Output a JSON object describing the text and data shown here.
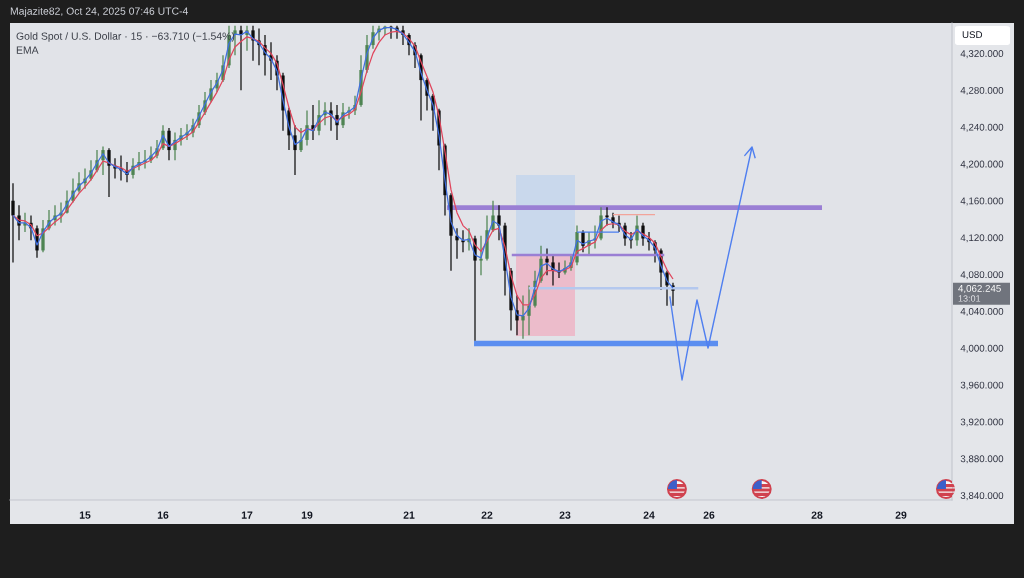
{
  "chart_data": {
    "type": "candlestick",
    "title": "Gold Spot / U.S. Dollar · 15 · −63.710 (−1.54%)",
    "categories": [
      null,
      null,
      null,
      null,
      null,
      null,
      null,
      null,
      null,
      null,
      null,
      null,
      "15",
      null,
      null,
      null,
      null,
      null,
      null,
      null,
      null,
      null,
      null,
      null,
      null,
      "16",
      null,
      null,
      null,
      null,
      null,
      null,
      null,
      null,
      null,
      null,
      null,
      null,
      null,
      "17",
      null,
      null,
      null,
      null,
      null,
      null,
      null,
      null,
      null,
      "19",
      null,
      null,
      null,
      null,
      null,
      null,
      null,
      null,
      null,
      null,
      null,
      null,
      null,
      null,
      null,
      null,
      "21",
      null,
      null,
      null,
      null,
      null,
      null,
      null,
      null,
      null,
      null,
      null,
      null,
      "22",
      null,
      null,
      null,
      null,
      null,
      null,
      null,
      null,
      null,
      null,
      null,
      null,
      "23",
      null,
      null,
      null,
      null,
      null,
      null,
      null,
      null,
      null,
      null,
      null,
      null,
      null,
      "24",
      null,
      null,
      null,
      null,
      null,
      null,
      null,
      null,
      null,
      "26",
      null,
      null,
      null,
      null,
      null,
      null,
      null,
      null,
      null,
      null,
      null,
      null,
      null,
      null,
      null,
      null,
      null,
      "28",
      null,
      null,
      null,
      null,
      null,
      null,
      null,
      null,
      null,
      null,
      null,
      null,
      null,
      "29",
      null,
      null,
      null,
      null,
      null,
      null,
      null,
      null
    ],
    "ohlc": [
      [
        4160,
        4179,
        4093,
        4144
      ],
      [
        4144,
        4155,
        4117,
        4133
      ],
      [
        4133,
        4147,
        4126,
        4136
      ],
      [
        4136,
        4144,
        4117,
        4130
      ],
      [
        4130,
        4133,
        4098,
        4106
      ],
      [
        4106,
        4139,
        4104,
        4130
      ],
      [
        4130,
        4150,
        4128,
        4139
      ],
      [
        4139,
        4155,
        4133,
        4144
      ],
      [
        4144,
        4158,
        4136,
        4147
      ],
      [
        4147,
        4171,
        4146,
        4160
      ],
      [
        4160,
        4184,
        4158,
        4171
      ],
      [
        4171,
        4191,
        4169,
        4179
      ],
      [
        4179,
        4195,
        4173,
        4184
      ],
      [
        4184,
        4204,
        4182,
        4193
      ],
      [
        4193,
        4215,
        4191,
        4204
      ],
      [
        4204,
        4219,
        4188,
        4215
      ],
      [
        4215,
        4217,
        4164,
        4198
      ],
      [
        4198,
        4206,
        4184,
        4195
      ],
      [
        4195,
        4209,
        4182,
        4193
      ],
      [
        4193,
        4202,
        4180,
        4188
      ],
      [
        4188,
        4206,
        4184,
        4198
      ],
      [
        4198,
        4213,
        4193,
        4202
      ],
      [
        4202,
        4215,
        4195,
        4204
      ],
      [
        4204,
        4219,
        4201,
        4209
      ],
      [
        4209,
        4226,
        4206,
        4217
      ],
      [
        4217,
        4242,
        4215,
        4236
      ],
      [
        4236,
        4239,
        4204,
        4215
      ],
      [
        4215,
        4234,
        4204,
        4226
      ],
      [
        4226,
        4239,
        4220,
        4231
      ],
      [
        4231,
        4243,
        4226,
        4234
      ],
      [
        4234,
        4249,
        4229,
        4242
      ],
      [
        4242,
        4264,
        4239,
        4256
      ],
      [
        4256,
        4278,
        4253,
        4269
      ],
      [
        4269,
        4291,
        4267,
        4282
      ],
      [
        4282,
        4299,
        4278,
        4291
      ],
      [
        4291,
        4318,
        4289,
        4307
      ],
      [
        4307,
        4350,
        4304,
        4340
      ],
      [
        4340,
        4350,
        4318,
        4345
      ],
      [
        4345,
        4350,
        4280,
        4340
      ],
      [
        4340,
        4350,
        4323,
        4345
      ],
      [
        4345,
        4350,
        4312,
        4334
      ],
      [
        4334,
        4347,
        4307,
        4329
      ],
      [
        4329,
        4340,
        4296,
        4318
      ],
      [
        4318,
        4332,
        4291,
        4312
      ],
      [
        4312,
        4318,
        4280,
        4296
      ],
      [
        4296,
        4299,
        4236,
        4258
      ],
      [
        4258,
        4261,
        4215,
        4231
      ],
      [
        4231,
        4242,
        4188,
        4215
      ],
      [
        4215,
        4239,
        4213,
        4226
      ],
      [
        4226,
        4258,
        4220,
        4242
      ],
      [
        4242,
        4264,
        4226,
        4236
      ],
      [
        4236,
        4269,
        4231,
        4253
      ],
      [
        4253,
        4267,
        4242,
        4258
      ],
      [
        4258,
        4267,
        4236,
        4253
      ],
      [
        4253,
        4264,
        4226,
        4242
      ],
      [
        4242,
        4266,
        4239,
        4256
      ],
      [
        4256,
        4262,
        4249,
        4258
      ],
      [
        4258,
        4274,
        4253,
        4264
      ],
      [
        4264,
        4318,
        4262,
        4302
      ],
      [
        4302,
        4340,
        4299,
        4329
      ],
      [
        4329,
        4350,
        4325,
        4343
      ],
      [
        4343,
        4350,
        4334,
        4347
      ],
      [
        4347,
        4350,
        4340,
        4349
      ],
      [
        4349,
        4350,
        4336,
        4348
      ],
      [
        4348,
        4350,
        4336,
        4345
      ],
      [
        4345,
        4350,
        4329,
        4340
      ],
      [
        4340,
        4342,
        4318,
        4329
      ],
      [
        4329,
        4332,
        4304,
        4318
      ],
      [
        4318,
        4320,
        4247,
        4291
      ],
      [
        4291,
        4293,
        4258,
        4274
      ],
      [
        4274,
        4276,
        4236,
        4258
      ],
      [
        4258,
        4260,
        4193,
        4220
      ],
      [
        4220,
        4222,
        4144,
        4166
      ],
      [
        4166,
        4168,
        4084,
        4122
      ],
      [
        4122,
        4130,
        4097,
        4117
      ],
      [
        4117,
        4128,
        4104,
        4115
      ],
      [
        4115,
        4130,
        4106,
        4119
      ],
      [
        4119,
        4122,
        4008,
        4095
      ],
      [
        4095,
        4122,
        4079,
        4097
      ],
      [
        4097,
        4144,
        4095,
        4128
      ],
      [
        4128,
        4160,
        4126,
        4144
      ],
      [
        4144,
        4155,
        4117,
        4133
      ],
      [
        4133,
        4136,
        4057,
        4084
      ],
      [
        4084,
        4087,
        4019,
        4041
      ],
      [
        4041,
        4057,
        4014,
        4030
      ],
      [
        4030,
        4057,
        4010,
        4035
      ],
      [
        4035,
        4068,
        4014,
        4046
      ],
      [
        4046,
        4084,
        4044,
        4073
      ],
      [
        4073,
        4111,
        4071,
        4097
      ],
      [
        4097,
        4108,
        4079,
        4093
      ],
      [
        4093,
        4101,
        4068,
        4084
      ],
      [
        4084,
        4093,
        4076,
        4082
      ],
      [
        4082,
        4095,
        4080,
        4087
      ],
      [
        4087,
        4101,
        4084,
        4093
      ],
      [
        4093,
        4133,
        4090,
        4126
      ],
      [
        4126,
        4128,
        4104,
        4111
      ],
      [
        4111,
        4126,
        4101,
        4117
      ],
      [
        4117,
        4133,
        4108,
        4119
      ],
      [
        4119,
        4153,
        4117,
        4144
      ],
      [
        4144,
        4153,
        4133,
        4142
      ],
      [
        4142,
        4147,
        4130,
        4136
      ],
      [
        4136,
        4144,
        4126,
        4133
      ],
      [
        4133,
        4136,
        4111,
        4119
      ],
      [
        4119,
        4126,
        4108,
        4117
      ],
      [
        4117,
        4144,
        4111,
        4133
      ],
      [
        4133,
        4136,
        4111,
        4119
      ],
      [
        4119,
        4126,
        4106,
        4115
      ],
      [
        4115,
        4117,
        4093,
        4106
      ],
      [
        4106,
        4108,
        4063,
        4082
      ],
      [
        4082,
        4084,
        4046,
        4068
      ],
      [
        4068,
        4071,
        4046,
        4062.245
      ],
      null,
      null,
      null,
      null,
      null,
      null,
      null,
      null,
      null,
      null,
      null,
      null,
      null,
      null,
      null,
      null,
      null,
      null,
      null,
      null,
      null,
      null,
      null,
      null,
      null,
      null,
      null,
      null,
      null,
      null,
      null,
      null,
      null,
      null,
      null,
      null,
      null,
      null,
      null,
      null,
      null,
      null,
      null,
      null,
      null,
      null
    ],
    "colors": [
      "#0d0d0d",
      "#0d0d0d",
      "#4e8452",
      "#0d0d0d",
      "#0d0d0d",
      "#4e8452",
      "#4e8452",
      "#4e8452",
      "#4e8452",
      "#4e8452",
      "#4e8452",
      "#4e8452",
      "#4e8452",
      "#4e8452",
      "#4e8452",
      "#4e8452",
      "#0d0d0d",
      "#0d0d0d",
      "#0d0d0d",
      "#0d0d0d",
      "#4e8452",
      "#4e8452",
      "#4e8452",
      "#4e8452",
      "#4e8452",
      "#4e8452",
      "#0d0d0d",
      "#4e8452",
      "#4e8452",
      "#4e8452",
      "#4e8452",
      "#4e8452",
      "#4e8452",
      "#4e8452",
      "#4e8452",
      "#4e8452",
      "#4e8452",
      "#4e8452",
      "#0d0d0d",
      "#4e8452",
      "#0d0d0d",
      "#0d0d0d",
      "#0d0d0d",
      "#0d0d0d",
      "#0d0d0d",
      "#0d0d0d",
      "#0d0d0d",
      "#0d0d0d",
      "#4e8452",
      "#4e8452",
      "#0d0d0d",
      "#4e8452",
      "#4e8452",
      "#0d0d0d",
      "#0d0d0d",
      "#4e8452",
      "#4e8452",
      "#4e8452",
      "#4e8452",
      "#4e8452",
      "#4e8452",
      "#4e8452",
      "#4e8452",
      "#0d0d0d",
      "#0d0d0d",
      "#0d0d0d",
      "#0d0d0d",
      "#0d0d0d",
      "#0d0d0d",
      "#0d0d0d",
      "#0d0d0d",
      "#0d0d0d",
      "#0d0d0d",
      "#0d0d0d",
      "#0d0d0d",
      "#0d0d0d",
      "#4e8452",
      "#0d0d0d",
      "#4e8452",
      "#4e8452",
      "#4e8452",
      "#0d0d0d",
      "#0d0d0d",
      "#0d0d0d",
      "#0d0d0d",
      "#4e8452",
      "#4e8452",
      "#4e8452",
      "#4e8452",
      "#0d0d0d",
      "#0d0d0d",
      "#0d0d0d",
      "#4e8452",
      "#4e8452",
      "#4e8452",
      "#0d0d0d",
      "#4e8452",
      "#4e8452",
      "#4e8452",
      "#0d0d0d",
      "#0d0d0d",
      "#0d0d0d",
      "#0d0d0d",
      "#0d0d0d",
      "#4e8452",
      "#0d0d0d",
      "#0d0d0d",
      "#0d0d0d",
      "#0d0d0d",
      "#0d0d0d",
      "#0d0d0d",
      null,
      null,
      null,
      null,
      null,
      null,
      null,
      null,
      null,
      null,
      null,
      null,
      null,
      null,
      null,
      null,
      null,
      null,
      null,
      null,
      null,
      null,
      null,
      null,
      null,
      null,
      null,
      null,
      null,
      null,
      null,
      null,
      null,
      null,
      null,
      null,
      null,
      null,
      null,
      null,
      null,
      null,
      null,
      null,
      null,
      null
    ],
    "series": [
      {
        "type": "line",
        "color": "#e0455c",
        "values": [
          4144,
          4139,
          4138,
          4134,
          4122,
          4125,
          4131,
          4137,
          4142,
          4150,
          4159,
          4168,
          4175,
          4183,
          4193,
          4203,
          4201,
          4198,
          4196,
          4192,
          4195,
          4198,
          4201,
          4204,
          4210,
          4222,
          4219,
          4222,
          4226,
          4230,
          4235,
          4245,
          4256,
          4267,
          4278,
          4291,
          4313,
          4327,
          4333,
          4338,
          4336,
          4333,
          4326,
          4320,
          4309,
          4286,
          4261,
          4240,
          4234,
          4238,
          4237,
          4244,
          4250,
          4252,
          4247,
          4251,
          4254,
          4259,
          4278,
          4301,
          4320,
          4332,
          4340,
          4343,
          4344,
          4342,
          4336,
          4328,
          4311,
          4295,
          4278,
          4252,
          4213,
          4172,
          4147,
          4133,
          4127,
          4112,
          4105,
          4116,
          4128,
          4130,
          4110,
          4079,
          4057,
          4047,
          4047,
          4058,
          4076,
          4084,
          4084,
          4083,
          4085,
          4088,
          4105,
          4108,
          4112,
          4115,
          4128,
          4134,
          4135,
          4134,
          4127,
          4123,
          4127,
          4124,
          4120,
          4114,
          4099,
          4085,
          4075,
          null,
          null,
          null,
          null,
          null,
          null,
          null,
          null,
          null,
          null,
          null,
          null,
          null,
          null,
          null,
          null,
          null,
          null,
          null,
          null,
          null,
          null,
          null,
          null,
          null,
          null,
          null,
          null,
          null,
          null,
          null,
          null,
          null,
          null,
          null,
          null,
          null,
          null,
          null,
          null,
          null,
          null,
          null,
          null,
          null,
          null
        ]
      },
      {
        "type": "line",
        "color": "#3f6fe0",
        "values": [
          4144,
          4136,
          4136,
          4131,
          4112,
          4126,
          4136,
          4142,
          4146,
          4156,
          4167,
          4176,
          4182,
          4190,
          4201,
          4211,
          4201,
          4197,
          4194,
          4189,
          4196,
          4200,
          4203,
          4208,
          4215,
          4231,
          4219,
          4224,
          4229,
          4233,
          4240,
          4252,
          4265,
          4278,
          4288,
          4302,
          4331,
          4341,
          4340,
          4344,
          4336,
          4331,
          4321,
          4314,
          4301,
          4269,
          4240,
          4221,
          4225,
          4238,
          4236,
          4249,
          4256,
          4254,
          4245,
          4253,
          4257,
          4262,
          4292,
          4320,
          4337,
          4345,
          4348,
          4348,
          4346,
          4341,
          4332,
          4322,
          4299,
          4280,
          4264,
          4231,
          4182,
          4137,
          4122,
          4117,
          4118,
          4101,
          4098,
          4120,
          4138,
          4134,
          4097,
          4055,
          4036,
          4035,
          4043,
          4066,
          4089,
          4092,
          4086,
          4083,
          4086,
          4091,
          4117,
          4113,
          4116,
          4118,
          4138,
          4141,
          4137,
          4134,
          4123,
          4118,
          4129,
          4122,
          4117,
          4109,
          4089,
          4073,
          4065,
          null,
          null,
          null,
          null,
          null,
          null,
          null,
          null,
          null,
          null,
          null,
          null,
          null,
          null,
          null,
          null,
          null,
          null,
          null,
          null,
          null,
          null,
          null,
          null,
          null,
          null,
          null,
          null,
          null,
          null,
          null,
          null,
          null,
          null,
          null,
          null,
          null,
          null,
          null,
          null,
          null,
          null,
          null,
          null,
          null,
          null
        ]
      },
      {
        "type": "line",
        "color": "#4a7ef0",
        "values": [
          null,
          null,
          null,
          null,
          null,
          null,
          null,
          null,
          null,
          null,
          null,
          null,
          null,
          null,
          null,
          null,
          null,
          null,
          null,
          null,
          null,
          null,
          null,
          null,
          null,
          null,
          null,
          null,
          null,
          null,
          null,
          null,
          null,
          null,
          null,
          null,
          null,
          null,
          null,
          null,
          null,
          null,
          null,
          null,
          null,
          null,
          null,
          null,
          null,
          null,
          null,
          null,
          null,
          null,
          null,
          null,
          null,
          null,
          null,
          null,
          null,
          null,
          null,
          null,
          null,
          null,
          null,
          null,
          null,
          null,
          null,
          null,
          null,
          null,
          null,
          null,
          null,
          null,
          null,
          null,
          null,
          null,
          null,
          null,
          null,
          null,
          null,
          null,
          null,
          null,
          null,
          null,
          null,
          null,
          4126,
          4126,
          4126,
          4126,
          4126,
          4126,
          4126,
          4126,
          null,
          null,
          null,
          null,
          null,
          null,
          null,
          null,
          null,
          null,
          null,
          null,
          null,
          null,
          null,
          null,
          null,
          null,
          null,
          null,
          null,
          null,
          null,
          null,
          null,
          null,
          null,
          null,
          null,
          null,
          null,
          null,
          null,
          null,
          null,
          null,
          null,
          null,
          null,
          null,
          null,
          null,
          null,
          null,
          null,
          null,
          null,
          null,
          null,
          null,
          null,
          null,
          null,
          null,
          null
        ]
      },
      {
        "type": "line",
        "color": "#f2a49a",
        "values": [
          null,
          null,
          null,
          null,
          null,
          null,
          null,
          null,
          null,
          null,
          null,
          null,
          null,
          null,
          null,
          null,
          null,
          null,
          null,
          null,
          null,
          null,
          null,
          null,
          null,
          null,
          null,
          null,
          null,
          null,
          null,
          null,
          null,
          null,
          null,
          null,
          null,
          null,
          null,
          null,
          null,
          null,
          null,
          null,
          null,
          null,
          null,
          null,
          null,
          null,
          null,
          null,
          null,
          null,
          null,
          null,
          null,
          null,
          null,
          null,
          null,
          null,
          null,
          null,
          null,
          null,
          null,
          null,
          null,
          null,
          null,
          null,
          null,
          null,
          null,
          null,
          null,
          null,
          null,
          null,
          null,
          null,
          null,
          null,
          null,
          null,
          null,
          null,
          null,
          null,
          null,
          null,
          null,
          null,
          null,
          null,
          null,
          null,
          null,
          null,
          4145,
          4145,
          4145,
          4145,
          4145,
          4145,
          4145,
          4145,
          null,
          null,
          null,
          null,
          null,
          null,
          null,
          null,
          null,
          null,
          null,
          null,
          null,
          null,
          null,
          null,
          null,
          null,
          null,
          null,
          null,
          null,
          null,
          null,
          null,
          null,
          null,
          null,
          null,
          null,
          null,
          null,
          null,
          null,
          null,
          null,
          null,
          null,
          null,
          null,
          null,
          null,
          null,
          null,
          null,
          null,
          null,
          null,
          null
        ]
      }
    ],
    "ylim": [
      3835,
      4353
    ],
    "yticks": [
      {
        "value": 3840,
        "label": "3,840.000"
      },
      {
        "value": 3880,
        "label": "3,880.000"
      },
      {
        "value": 3920,
        "label": "3,920.000"
      },
      {
        "value": 3960,
        "label": "3,960.000"
      },
      {
        "value": 4000,
        "label": "4,000.000"
      },
      {
        "value": 4040,
        "label": "4,040.000"
      },
      {
        "value": 4080,
        "label": "4,080.000"
      },
      {
        "value": 4120,
        "label": "4,120.000"
      },
      {
        "value": 4160,
        "label": "4,160.000"
      },
      {
        "value": 4200,
        "label": "4,200.000"
      },
      {
        "value": 4240,
        "label": "4,240.000"
      },
      {
        "value": 4280,
        "label": "4,280.000"
      },
      {
        "value": 4320,
        "label": "4,320.000"
      }
    ],
    "bands": [
      {
        "axis": "y",
        "from": 4101,
        "to": 4188,
        "color": "#c9d8ec"
      },
      {
        "axis": "y",
        "from": 4013,
        "to": 4101,
        "color": "#ecbccb"
      },
      {
        "axis": "y",
        "from": 4150,
        "to": 4155,
        "color": "#9a7fd4"
      },
      {
        "axis": "y",
        "from": 4002,
        "to": 4008,
        "color": "#5b8ef0"
      }
    ],
    "ref_lines": [
      {
        "axis": "y",
        "value": 4101,
        "color": "#9a7fd4"
      },
      {
        "axis": "y",
        "value": 4065,
        "color": "#b4c8ee"
      }
    ],
    "annotations": [
      "Majazite82, Oct 24, 2025 07:46 UTC-4",
      "EMA",
      "USD",
      "4,062.245",
      "13:01"
    ],
    "line_style": "solid"
  }
}
